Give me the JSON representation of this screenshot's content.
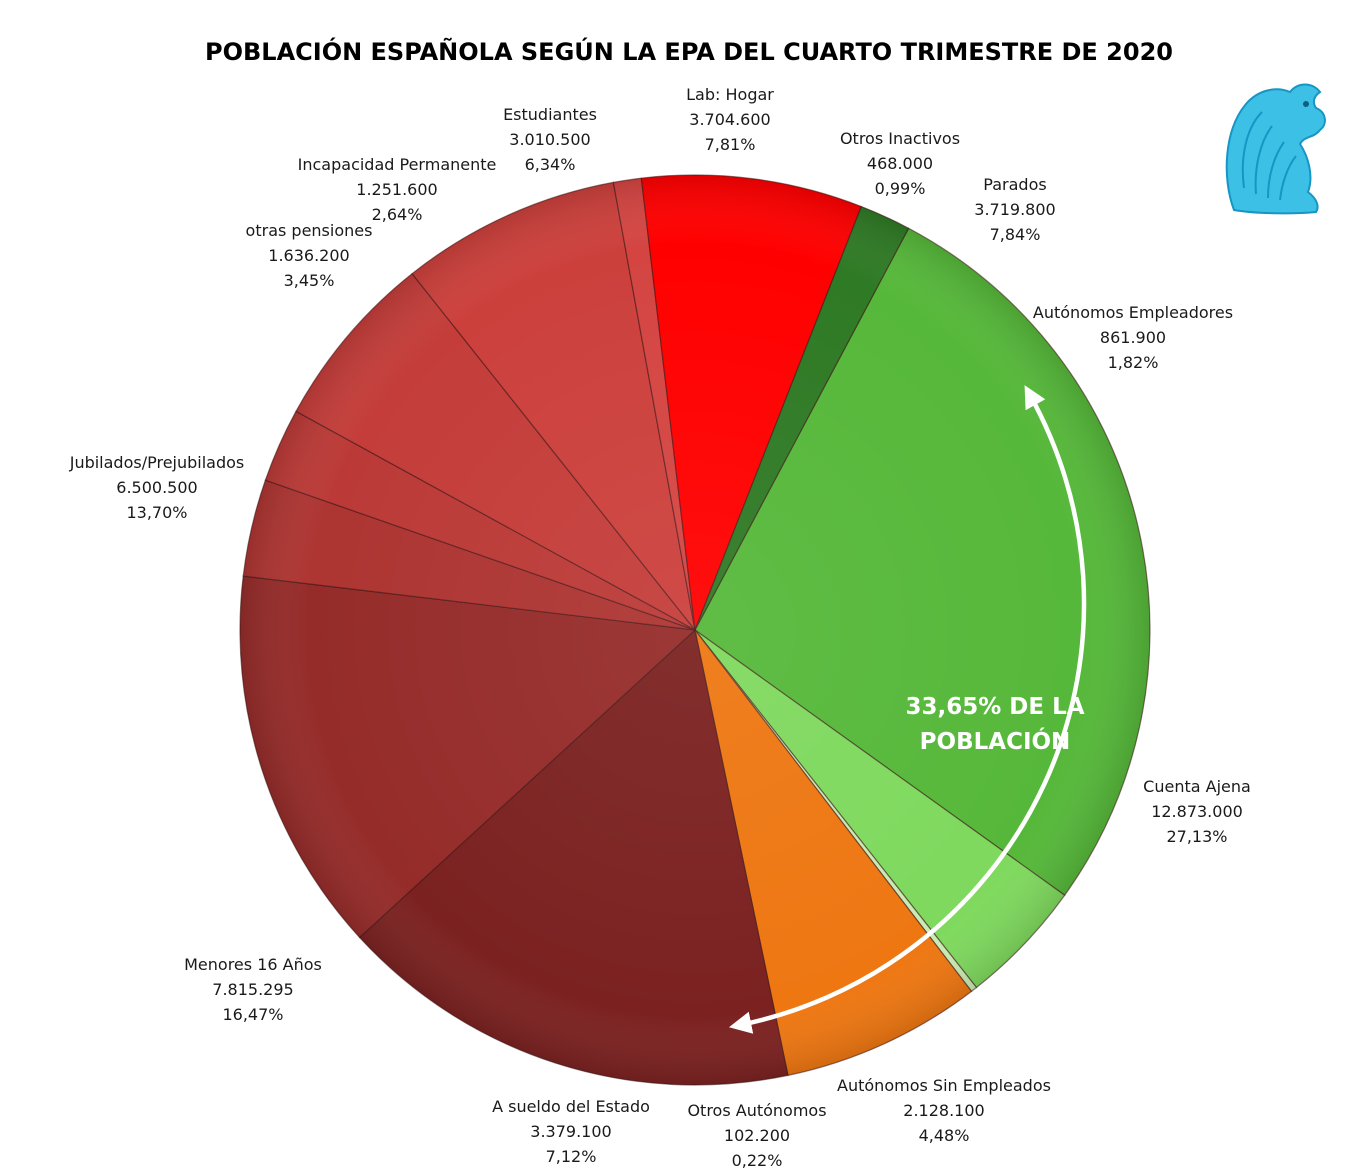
{
  "chart_data": {
    "type": "pie",
    "title": "POBLACIÓN ESPAÑOLA SEGÚN LA EPA DEL CUARTO TRIMESTRE DE 2020",
    "start_angle_deg": 28,
    "direction": "clockwise",
    "slices": [
      {
        "label": "Cuenta Ajena",
        "value": "12.873.000",
        "percent": "27,13%",
        "pct": 27.13,
        "color": "#56b83a"
      },
      {
        "label": "Autónomos Sin Empleados",
        "value": "2.128.100",
        "percent": "4,48%",
        "pct": 4.48,
        "color": "#7fd95e"
      },
      {
        "label": "Otros Autónomos",
        "value": "102.200",
        "percent": "0,22%",
        "pct": 0.22,
        "color": "#c8ecb3"
      },
      {
        "label": "A sueldo del Estado",
        "value": "3.379.100",
        "percent": "7,12%",
        "pct": 7.12,
        "color": "#ee7712"
      },
      {
        "label": "Menores 16 Años",
        "value": "7.815.295",
        "percent": "16,47%",
        "pct": 16.47,
        "color": "#7b2221"
      },
      {
        "label": "Jubilados/Prejubilados",
        "value": "6.500.500",
        "percent": "13,70%",
        "pct": 13.7,
        "color": "#952c2a"
      },
      {
        "label": "otras pensiones",
        "value": "1.636.200",
        "percent": "3,45%",
        "pct": 3.45,
        "color": "#ad3532"
      },
      {
        "label": "Incapacidad Permanente",
        "value": "1.251.600",
        "percent": "2,64%",
        "pct": 2.64,
        "color": "#bb3a37"
      },
      {
        "label": "Estudiantes",
        "value": "3.010.500",
        "percent": "6,34%",
        "pct": 6.34,
        "color": "#c43d3a"
      },
      {
        "label": "Lab: Hogar",
        "value": "3.704.600",
        "percent": "7,81%",
        "pct": 7.81,
        "color": "#cc403c"
      },
      {
        "label": "Otros Inactivos",
        "value": "468.000",
        "percent": "0,99%",
        "pct": 0.99,
        "color": "#d44542"
      },
      {
        "label": "Parados",
        "value": "3.719.800",
        "percent": "7,84%",
        "pct": 7.84,
        "color": "#ff0000"
      },
      {
        "label": "Autónomos Empleadores",
        "value": "861.900",
        "percent": "1,82%",
        "pct": 1.82,
        "color": "#2f7a25"
      }
    ],
    "annotation": {
      "lines": [
        "33,65% DE LA",
        "POBLACIÓN"
      ]
    },
    "logo_icon": "griffin-logo-icon"
  }
}
